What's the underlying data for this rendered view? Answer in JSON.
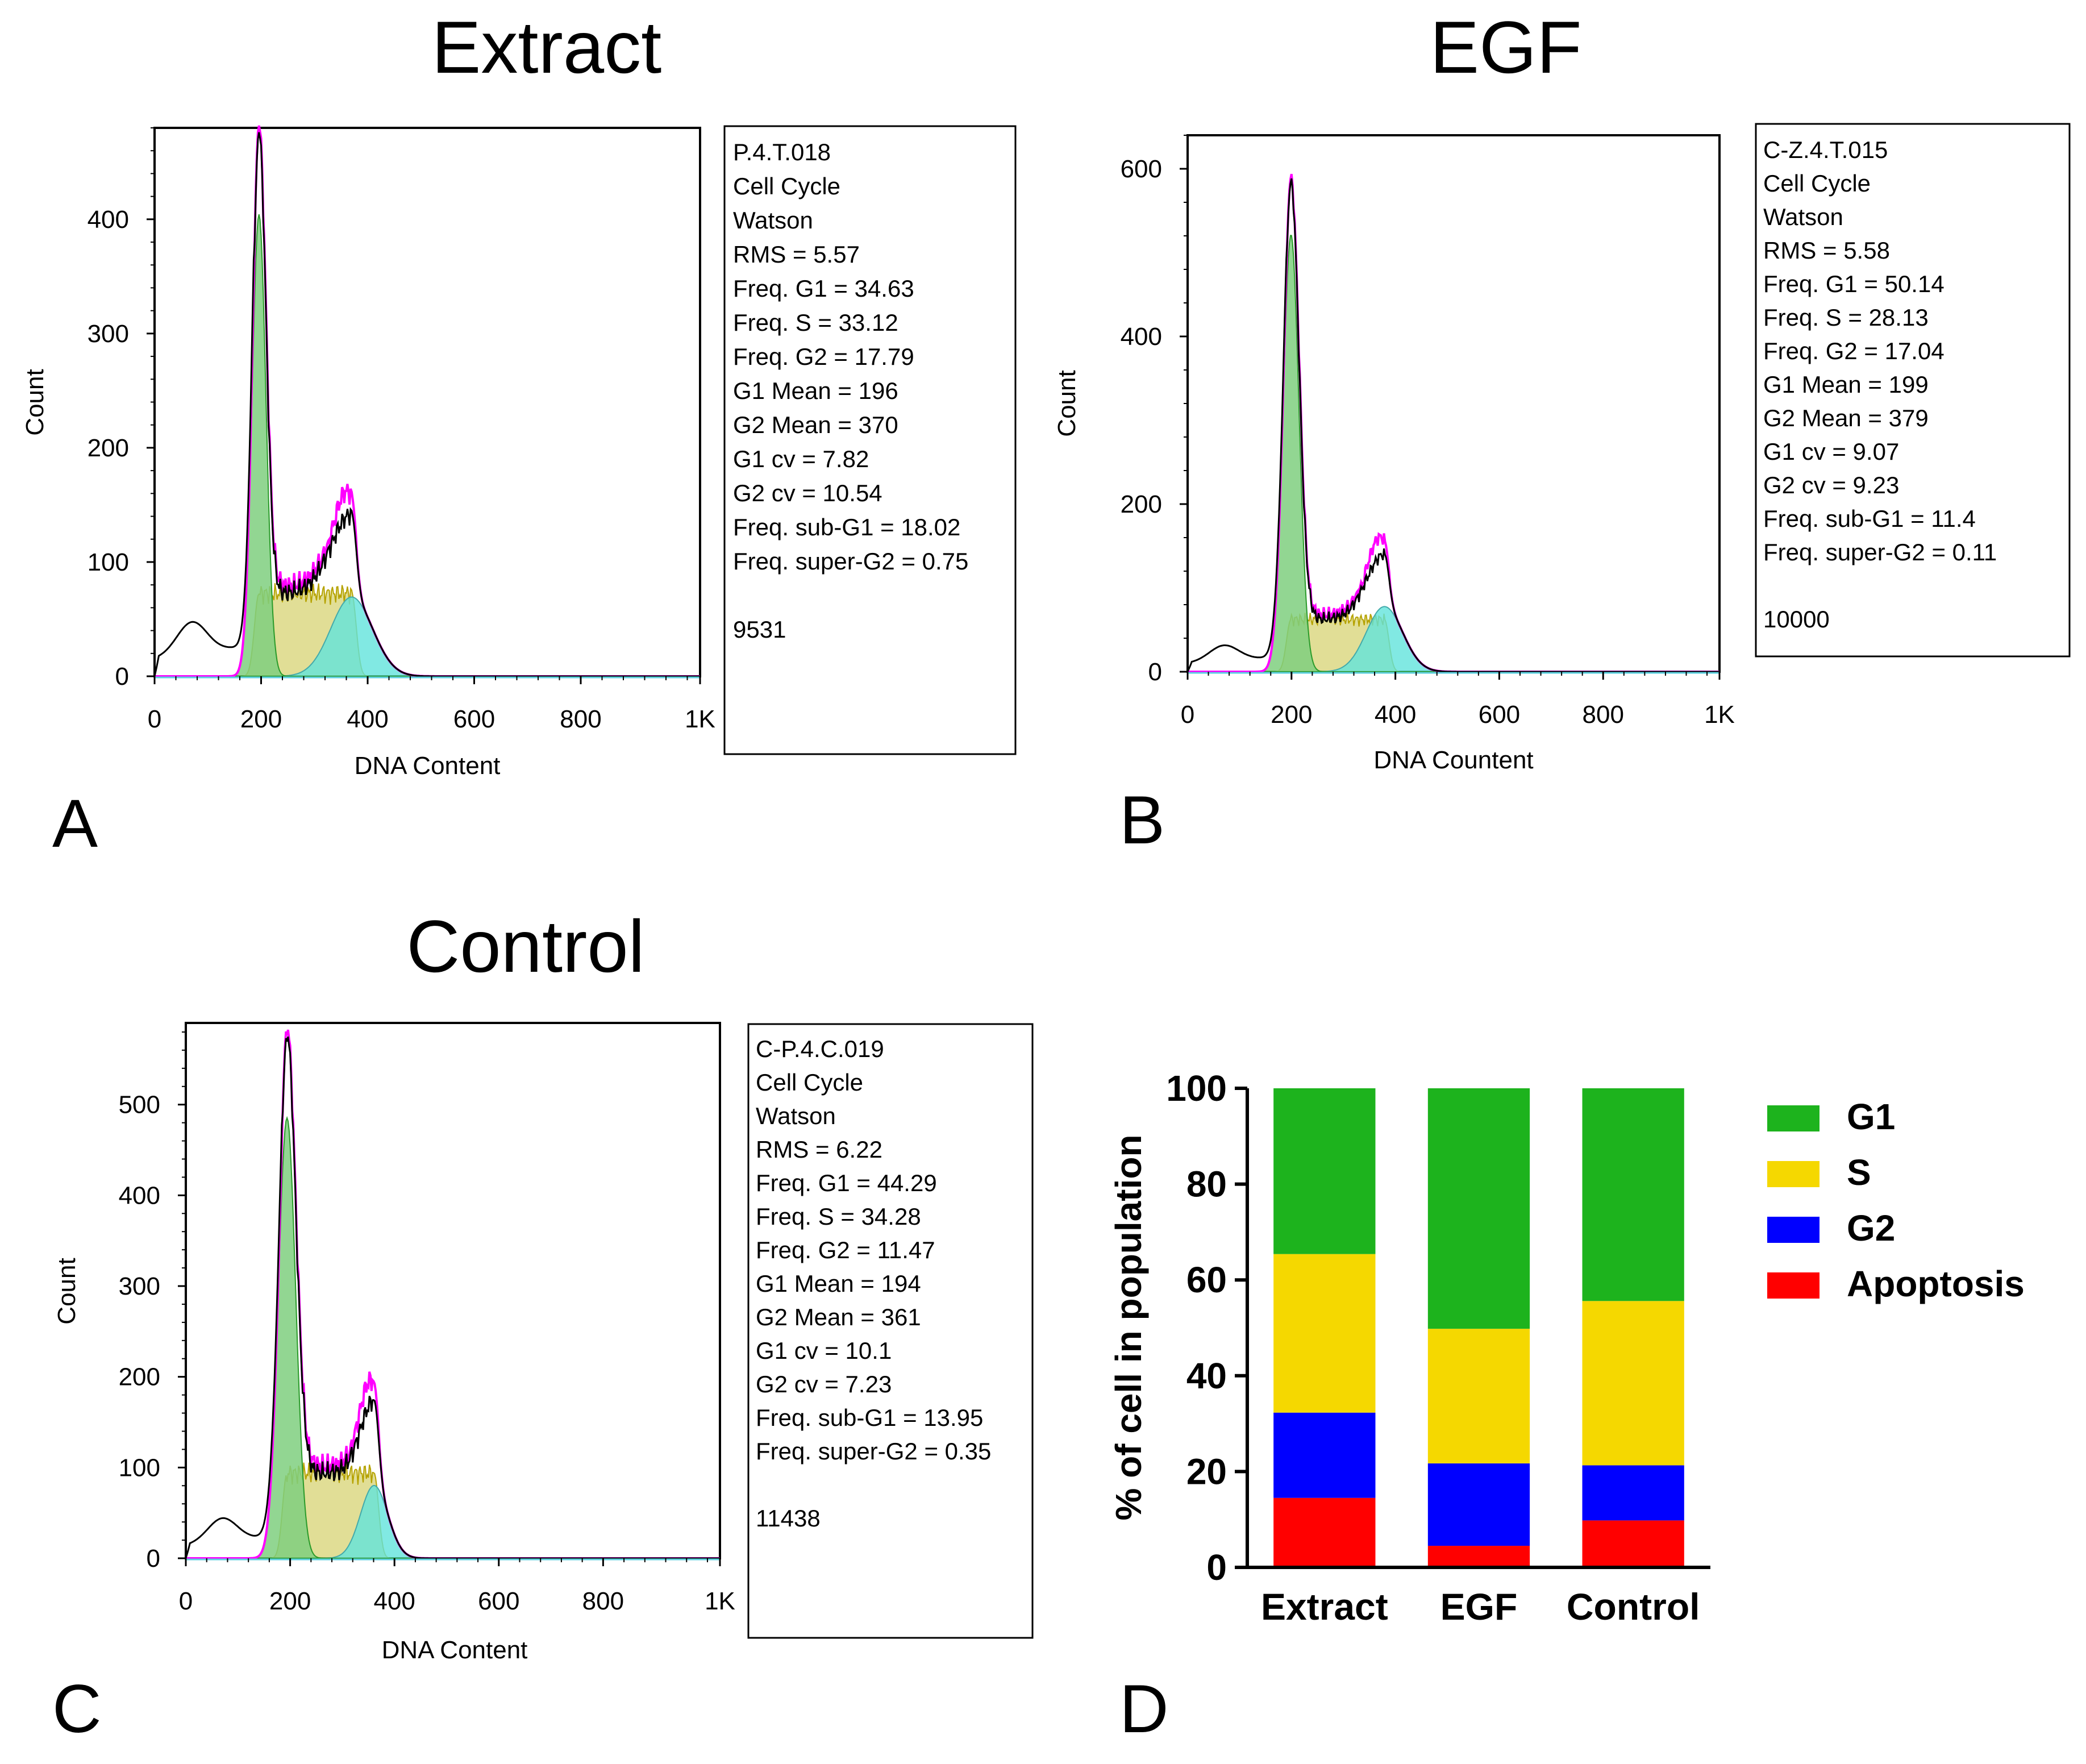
{
  "panels": [
    {
      "id": "A",
      "letter": "A",
      "title": "Extract",
      "xlabel": "DNA Content",
      "ylabel": "Count",
      "yticks": [
        0,
        100,
        200,
        300,
        400
      ],
      "ymax": 480,
      "xticks": [
        "0",
        "200",
        "400",
        "600",
        "800",
        "1K"
      ],
      "xvals": [
        0,
        200,
        400,
        600,
        800,
        1024
      ],
      "g1_mean": 196,
      "g2_mean": 370,
      "g1_cv": 7.82,
      "g2_cv": 10.54,
      "stats": [
        "P.4.T.018",
        "Cell Cycle",
        "Watson",
        "RMS  = 5.57",
        "Freq. G1  = 34.63",
        "Freq. S = 33.12",
        "Freq. G2  = 17.79",
        "G1 Mean  = 196",
        "G2 Mean  = 370",
        "G1 cv  = 7.82",
        "G2 cv = 10.54",
        "Freq. sub-G1  = 18.02",
        "Freq. super-G2 = 0.75",
        "",
        "9531"
      ]
    },
    {
      "id": "B",
      "letter": "B",
      "title": "EGF",
      "xlabel": "DNA Countent",
      "ylabel": "Count",
      "yticks": [
        0,
        200,
        400,
        600
      ],
      "ymax": 640,
      "xticks": [
        "0",
        "200",
        "400",
        "600",
        "800",
        "1K"
      ],
      "xvals": [
        0,
        200,
        400,
        600,
        800,
        1024
      ],
      "g1_mean": 199,
      "g2_mean": 379,
      "g1_cv": 9.07,
      "g2_cv": 9.23,
      "stats": [
        "C-Z.4.T.015",
        "Cell Cycle",
        "Watson",
        "RMS  = 5.58",
        "Freq. G1  = 50.14",
        "Freq. S = 28.13",
        "Freq. G2  = 17.04",
        "G1 Mean  = 199",
        "G2 Mean  = 379",
        "G1 cv  = 9.07",
        "G2 cv = 9.23",
        "Freq. sub-G1  = 11.4",
        "Freq. super-G2 = 0.11",
        "",
        "10000"
      ]
    },
    {
      "id": "C",
      "letter": "C",
      "title": "Control",
      "xlabel": "DNA Content",
      "ylabel": "Count",
      "yticks": [
        0,
        100,
        200,
        300,
        400,
        500
      ],
      "ymax": 590,
      "xticks": [
        "0",
        "200",
        "400",
        "600",
        "800",
        "1K"
      ],
      "xvals": [
        0,
        200,
        400,
        600,
        800,
        1024
      ],
      "g1_mean": 194,
      "g2_mean": 361,
      "g1_cv": 10.1,
      "g2_cv": 7.23,
      "stats": [
        "C-P.4.C.019",
        "Cell Cycle",
        "Watson",
        "RMS  = 6.22",
        "Freq. G1  = 44.29",
        "Freq. S = 34.28",
        "Freq. G2  = 11.47",
        "G1 Mean  = 194",
        "G2 Mean  = 361",
        "G1 cv  = 10.1",
        "G2 cv = 7.23",
        "Freq. sub-G1  = 13.95",
        "Freq. super-G2 = 0.35",
        "",
        "11438"
      ]
    }
  ],
  "chart_data": {
    "type": "bar",
    "stacked": true,
    "letter": "D",
    "categories": [
      "Extract",
      "EGF",
      "Control"
    ],
    "ylabel": "% of cell in population",
    "ylim": [
      0,
      100
    ],
    "yticks": [
      "0",
      "20",
      "40",
      "60",
      "80",
      "100"
    ],
    "series": [
      {
        "name": "Apoptosis",
        "color": "#ff0000",
        "values": [
          14.5,
          4.5,
          9.8
        ]
      },
      {
        "name": "G2",
        "color": "#0000ff",
        "values": [
          17.8,
          17.2,
          11.5
        ]
      },
      {
        "name": "S",
        "color": "#f5d800",
        "values": [
          33.1,
          28.1,
          34.3
        ]
      },
      {
        "name": "G1",
        "color": "#1db31d",
        "values": [
          34.6,
          50.2,
          44.4
        ]
      }
    ],
    "legend": [
      "G1",
      "S",
      "G2",
      "Apoptosis"
    ]
  }
}
